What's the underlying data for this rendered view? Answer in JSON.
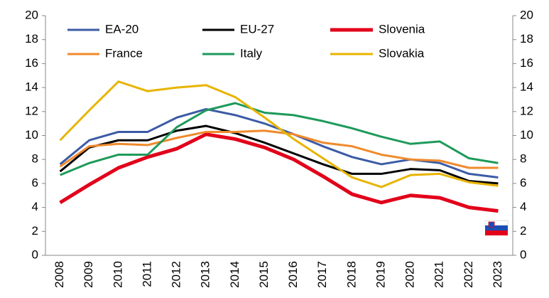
{
  "chart_data": {
    "type": "line",
    "categories": [
      "2008",
      "2009",
      "2010",
      "2011",
      "2012",
      "2013",
      "2014",
      "2015",
      "2016",
      "2017",
      "2018",
      "2019",
      "2020",
      "2021",
      "2022",
      "2023"
    ],
    "series": [
      {
        "name": "EA-20",
        "color": "#3b5ba5",
        "values": [
          7.6,
          9.6,
          10.3,
          10.3,
          11.5,
          12.2,
          11.7,
          11.0,
          10.1,
          9.1,
          8.2,
          7.6,
          8.0,
          7.7,
          6.8,
          6.5
        ]
      },
      {
        "name": "EU-27",
        "color": "#000000",
        "values": [
          7.0,
          9.0,
          9.6,
          9.6,
          10.4,
          10.8,
          10.2,
          9.4,
          8.5,
          7.6,
          6.8,
          6.8,
          7.2,
          7.1,
          6.2,
          6.0
        ]
      },
      {
        "name": "Slovenia",
        "color": "#e2001a",
        "values": [
          4.4,
          5.9,
          7.3,
          8.2,
          8.9,
          10.1,
          9.7,
          9.0,
          8.0,
          6.6,
          5.1,
          4.4,
          5.0,
          4.8,
          4.0,
          3.7
        ]
      },
      {
        "name": "France",
        "color": "#f08a2c",
        "values": [
          7.4,
          9.1,
          9.3,
          9.2,
          9.8,
          10.3,
          10.3,
          10.4,
          10.1,
          9.4,
          9.1,
          8.4,
          8.0,
          7.9,
          7.3,
          7.3
        ]
      },
      {
        "name": "Italy",
        "color": "#1e9a5a",
        "values": [
          6.7,
          7.7,
          8.4,
          8.4,
          10.7,
          12.1,
          12.7,
          11.9,
          11.7,
          11.2,
          10.6,
          9.9,
          9.3,
          9.5,
          8.1,
          7.7
        ]
      },
      {
        "name": "Slovakia",
        "color": "#e8b400",
        "values": [
          9.6,
          12.1,
          14.5,
          13.7,
          14.0,
          14.2,
          13.2,
          11.5,
          9.7,
          8.1,
          6.5,
          5.7,
          6.7,
          6.8,
          6.1,
          5.8
        ]
      }
    ],
    "ylim": [
      0,
      20
    ],
    "yticks": [
      0,
      2,
      4,
      6,
      8,
      10,
      12,
      14,
      16,
      18,
      20
    ],
    "y2lim": [
      0,
      20
    ],
    "y2ticks": [
      0,
      2,
      4,
      6,
      8,
      10,
      12,
      14,
      16,
      18,
      20
    ]
  }
}
